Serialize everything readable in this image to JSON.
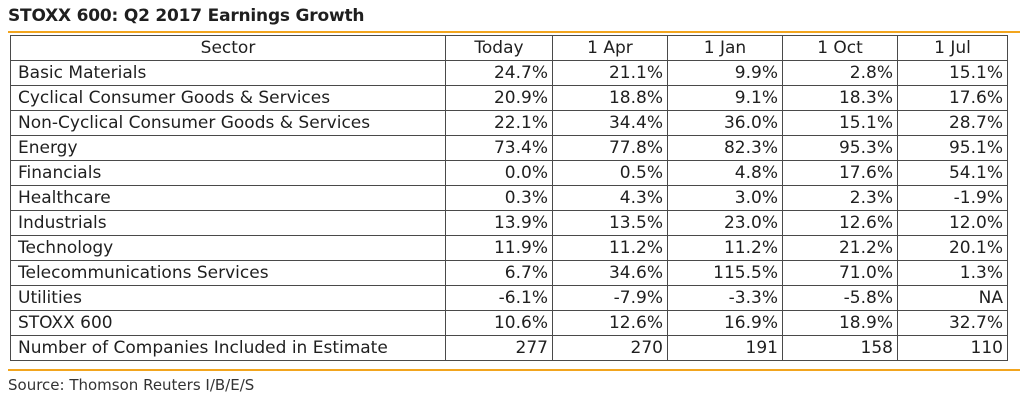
{
  "title": "STOXX 600: Q2 2017 Earnings Growth",
  "source": "Source: Thomson Reuters I/B/E/S",
  "accent_color": "#f2a51e",
  "table": {
    "headers": [
      "Sector",
      "Today",
      "1 Apr",
      "1 Jan",
      "1 Oct",
      "1 Jul"
    ],
    "rows": [
      [
        "Basic Materials",
        "24.7%",
        "21.1%",
        "9.9%",
        "2.8%",
        "15.1%"
      ],
      [
        "Cyclical Consumer Goods & Services",
        "20.9%",
        "18.8%",
        "9.1%",
        "18.3%",
        "17.6%"
      ],
      [
        "Non-Cyclical Consumer Goods & Services",
        "22.1%",
        "34.4%",
        "36.0%",
        "15.1%",
        "28.7%"
      ],
      [
        "Energy",
        "73.4%",
        "77.8%",
        "82.3%",
        "95.3%",
        "95.1%"
      ],
      [
        "Financials",
        "0.0%",
        "0.5%",
        "4.8%",
        "17.6%",
        "54.1%"
      ],
      [
        "Healthcare",
        "0.3%",
        "4.3%",
        "3.0%",
        "2.3%",
        "-1.9%"
      ],
      [
        "Industrials",
        "13.9%",
        "13.5%",
        "23.0%",
        "12.6%",
        "12.0%"
      ],
      [
        "Technology",
        "11.9%",
        "11.2%",
        "11.2%",
        "21.2%",
        "20.1%"
      ],
      [
        "Telecommunications Services",
        "6.7%",
        "34.6%",
        "115.5%",
        "71.0%",
        "1.3%"
      ],
      [
        "Utilities",
        "-6.1%",
        "-7.9%",
        "-3.3%",
        "-5.8%",
        "NA"
      ],
      [
        "STOXX 600",
        "10.6%",
        "12.6%",
        "16.9%",
        "18.9%",
        "32.7%"
      ],
      [
        "Number of Companies Included in Estimate",
        "277",
        "270",
        "191",
        "158",
        "110"
      ]
    ]
  }
}
